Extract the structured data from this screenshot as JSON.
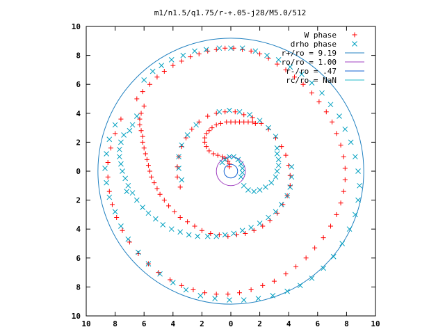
{
  "chart_data": {
    "type": "scatter",
    "title": "m1/n1.5/q1.75/r-+.05-j28/M5.0/512",
    "xlim": [
      -10,
      10
    ],
    "ylim": [
      -10,
      10
    ],
    "x_ticks": [
      -10,
      -8,
      -6,
      -4,
      -2,
      0,
      2,
      4,
      6,
      8,
      10
    ],
    "y_ticks": [
      -10,
      -8,
      -6,
      -4,
      -2,
      0,
      2,
      4,
      6,
      8,
      10
    ],
    "x_tick_labels": [
      "10",
      "8",
      "6",
      "4",
      "2",
      "0",
      "2",
      "4",
      "6",
      "8",
      "10"
    ],
    "y_tick_labels": [
      "10",
      "8",
      "6",
      "4",
      "2",
      "0",
      "2",
      "4",
      "6",
      "8",
      "10"
    ],
    "grid": false,
    "legend_position": "top-right",
    "series": [
      {
        "name": "W phase",
        "kind": "points",
        "marker": "plus",
        "color": "#ff0000",
        "points": [
          [
            -0.7,
            3.3
          ],
          [
            -1.0,
            3.2
          ],
          [
            -1.3,
            3.0
          ],
          [
            -1.5,
            2.8
          ],
          [
            -1.7,
            2.6
          ],
          [
            -1.8,
            2.3
          ],
          [
            -1.8,
            2.0
          ],
          [
            -1.7,
            1.7
          ],
          [
            -1.5,
            1.4
          ],
          [
            -1.2,
            1.2
          ],
          [
            -0.9,
            1.1
          ],
          [
            -0.6,
            1.0
          ],
          [
            -0.4,
            0.9
          ],
          [
            -0.2,
            0.7
          ],
          [
            -0.1,
            0.5
          ],
          [
            -0.1,
            0.3
          ],
          [
            -0.3,
            3.4
          ],
          [
            0.0,
            3.4
          ],
          [
            0.3,
            3.4
          ],
          [
            0.6,
            3.4
          ],
          [
            0.9,
            3.4
          ],
          [
            1.2,
            3.4
          ],
          [
            1.5,
            3.4
          ],
          [
            1.7,
            3.3
          ],
          [
            -6.0,
            4.5
          ],
          [
            -6.2,
            4.0
          ],
          [
            -6.3,
            3.6
          ],
          [
            -6.3,
            3.2
          ],
          [
            -6.2,
            2.8
          ],
          [
            -6.1,
            2.4
          ],
          [
            -6.1,
            2.0
          ],
          [
            -6.0,
            1.6
          ],
          [
            -5.9,
            1.2
          ],
          [
            -5.8,
            0.8
          ],
          [
            -5.7,
            0.4
          ],
          [
            -5.6,
            0.0
          ],
          [
            -5.5,
            -0.4
          ],
          [
            -5.3,
            -0.8
          ],
          [
            -5.1,
            -1.2
          ],
          [
            -4.9,
            -1.6
          ],
          [
            -4.6,
            -2.0
          ],
          [
            -4.3,
            -2.4
          ],
          [
            -3.9,
            -2.8
          ],
          [
            -3.5,
            -3.2
          ],
          [
            -3.0,
            -3.5
          ],
          [
            -2.5,
            -3.8
          ],
          [
            -2.0,
            -4.1
          ],
          [
            -1.4,
            -4.3
          ],
          [
            -0.8,
            -4.4
          ],
          [
            -0.2,
            -4.5
          ],
          [
            0.4,
            -4.4
          ],
          [
            1.0,
            -4.3
          ],
          [
            1.6,
            -4.1
          ],
          [
            2.2,
            -3.8
          ],
          [
            2.7,
            -3.4
          ],
          [
            3.2,
            -2.9
          ],
          [
            3.6,
            -2.3
          ],
          [
            3.9,
            -1.7
          ],
          [
            4.1,
            -1.0
          ],
          [
            4.1,
            -0.3
          ],
          [
            4.0,
            0.4
          ],
          [
            3.8,
            1.1
          ],
          [
            3.5,
            1.7
          ],
          [
            3.1,
            2.3
          ],
          [
            2.6,
            2.9
          ],
          [
            2.1,
            3.3
          ],
          [
            1.5,
            3.7
          ],
          [
            0.9,
            3.9
          ],
          [
            0.3,
            4.1
          ],
          [
            -0.4,
            4.1
          ],
          [
            -1.0,
            4.0
          ],
          [
            -1.6,
            3.8
          ],
          [
            -2.2,
            3.4
          ],
          [
            -2.7,
            2.9
          ],
          [
            -3.1,
            2.3
          ],
          [
            -3.4,
            1.7
          ],
          [
            -3.6,
            1.0
          ],
          [
            -3.7,
            0.3
          ],
          [
            -3.7,
            -0.4
          ],
          [
            -3.5,
            -1.1
          ],
          [
            -6.5,
            5.0
          ],
          [
            -6.1,
            5.5
          ],
          [
            -5.6,
            6.0
          ],
          [
            -5.1,
            6.5
          ],
          [
            -4.6,
            6.9
          ],
          [
            -4.0,
            7.3
          ],
          [
            -3.4,
            7.6
          ],
          [
            -2.8,
            7.9
          ],
          [
            -2.2,
            8.1
          ],
          [
            -1.6,
            8.3
          ],
          [
            -1.0,
            8.4
          ],
          [
            -0.4,
            8.5
          ],
          [
            0.2,
            8.5
          ],
          [
            0.8,
            8.4
          ],
          [
            1.4,
            8.3
          ],
          [
            2.0,
            8.1
          ],
          [
            2.6,
            7.8
          ],
          [
            3.2,
            7.4
          ],
          [
            3.8,
            7.0
          ],
          [
            4.4,
            6.5
          ],
          [
            5.0,
            6.0
          ],
          [
            5.6,
            5.4
          ],
          [
            6.1,
            4.8
          ],
          [
            6.6,
            4.1
          ],
          [
            7.0,
            3.4
          ],
          [
            7.3,
            2.6
          ],
          [
            7.6,
            1.8
          ],
          [
            7.8,
            1.0
          ],
          [
            7.9,
            0.2
          ],
          [
            7.9,
            -0.6
          ],
          [
            7.8,
            -1.4
          ],
          [
            7.6,
            -2.2
          ],
          [
            7.3,
            -3.0
          ],
          [
            6.9,
            -3.8
          ],
          [
            6.4,
            -4.6
          ],
          [
            5.8,
            -5.3
          ],
          [
            5.2,
            -6.0
          ],
          [
            4.5,
            -6.6
          ],
          [
            3.8,
            -7.1
          ],
          [
            3.0,
            -7.6
          ],
          [
            2.2,
            -7.9
          ],
          [
            1.4,
            -8.2
          ],
          [
            0.6,
            -8.4
          ],
          [
            -0.2,
            -8.5
          ],
          [
            -1.0,
            -8.5
          ],
          [
            -1.8,
            -8.4
          ],
          [
            -2.6,
            -8.2
          ],
          [
            -3.4,
            -7.9
          ],
          [
            -4.2,
            -7.5
          ],
          [
            -5.0,
            -7.0
          ],
          [
            -5.7,
            -6.4
          ],
          [
            -6.4,
            -5.7
          ],
          [
            -7.0,
            -4.9
          ],
          [
            -7.5,
            -4.1
          ],
          [
            -7.9,
            -3.2
          ],
          [
            -8.2,
            -2.3
          ],
          [
            -8.4,
            -1.4
          ],
          [
            -8.5,
            -0.4
          ],
          [
            -8.5,
            0.6
          ],
          [
            -8.3,
            1.6
          ],
          [
            -8.0,
            2.6
          ],
          [
            -7.6,
            3.6
          ]
        ]
      },
      {
        "name": "drho phase",
        "kind": "points",
        "marker": "cross",
        "color": "#00a0c0",
        "points": [
          [
            -0.6,
            0.6
          ],
          [
            -0.4,
            0.8
          ],
          [
            -0.1,
            1.0
          ],
          [
            0.2,
            1.0
          ],
          [
            0.5,
            0.8
          ],
          [
            0.7,
            0.5
          ],
          [
            0.8,
            0.2
          ],
          [
            0.8,
            -0.1
          ],
          [
            0.7,
            -0.4
          ],
          [
            0.9,
            -1.0
          ],
          [
            1.2,
            -1.3
          ],
          [
            1.6,
            -1.4
          ],
          [
            2.0,
            -1.3
          ],
          [
            2.4,
            -1.1
          ],
          [
            2.8,
            -0.8
          ],
          [
            3.1,
            -0.4
          ],
          [
            3.2,
            0.0
          ],
          [
            3.3,
            0.4
          ],
          [
            3.3,
            0.8
          ],
          [
            3.2,
            1.2
          ],
          [
            3.2,
            1.6
          ],
          [
            -7.4,
            2.5
          ],
          [
            -7.6,
            2.0
          ],
          [
            -7.7,
            1.5
          ],
          [
            -7.7,
            1.0
          ],
          [
            -7.6,
            0.5
          ],
          [
            -7.5,
            0.0
          ],
          [
            -7.3,
            -0.5
          ],
          [
            -7.1,
            -1.0
          ],
          [
            -6.8,
            -1.5
          ],
          [
            -6.5,
            -2.0
          ],
          [
            -6.1,
            -2.5
          ],
          [
            -5.7,
            -2.9
          ],
          [
            -5.2,
            -3.3
          ],
          [
            -4.7,
            -3.7
          ],
          [
            -4.1,
            -4.0
          ],
          [
            -3.5,
            -4.2
          ],
          [
            -2.9,
            -4.4
          ],
          [
            -2.3,
            -4.5
          ],
          [
            -1.6,
            -4.5
          ],
          [
            -1.0,
            -4.5
          ],
          [
            -0.4,
            -4.4
          ],
          [
            0.2,
            -4.3
          ],
          [
            0.8,
            -4.1
          ],
          [
            1.4,
            -3.9
          ],
          [
            2.0,
            -3.6
          ],
          [
            2.6,
            -3.2
          ],
          [
            3.1,
            -2.8
          ],
          [
            3.5,
            -2.3
          ],
          [
            3.9,
            -1.7
          ],
          [
            4.1,
            -1.1
          ],
          [
            4.2,
            -0.4
          ],
          [
            4.2,
            0.3
          ],
          [
            -6.8,
            3.2
          ],
          [
            -6.5,
            3.8
          ],
          [
            -7.0,
            2.8
          ],
          [
            -7.2,
            -1.4
          ],
          [
            -0.8,
            4.1
          ],
          [
            -0.1,
            4.2
          ],
          [
            0.6,
            4.1
          ],
          [
            1.3,
            3.9
          ],
          [
            2.0,
            3.5
          ],
          [
            2.6,
            3.0
          ],
          [
            3.1,
            2.4
          ],
          [
            -2.4,
            3.2
          ],
          [
            -3.0,
            2.5
          ],
          [
            -3.4,
            1.8
          ],
          [
            -3.6,
            1.0
          ],
          [
            -3.6,
            0.2
          ],
          [
            -3.4,
            -0.6
          ],
          [
            -6.0,
            6.3
          ],
          [
            -5.4,
            6.9
          ],
          [
            -4.8,
            7.3
          ],
          [
            -4.1,
            7.7
          ],
          [
            -3.3,
            8.0
          ],
          [
            -2.5,
            8.3
          ],
          [
            -1.7,
            8.4
          ],
          [
            -0.8,
            8.5
          ],
          [
            0.0,
            8.5
          ],
          [
            0.8,
            8.5
          ],
          [
            1.7,
            8.3
          ],
          [
            2.5,
            8.0
          ],
          [
            3.3,
            7.7
          ],
          [
            4.1,
            7.2
          ],
          [
            4.9,
            6.7
          ],
          [
            5.6,
            6.1
          ],
          [
            6.3,
            5.4
          ],
          [
            6.9,
            4.6
          ],
          [
            7.5,
            3.8
          ],
          [
            7.9,
            2.9
          ],
          [
            8.3,
            2.0
          ],
          [
            8.6,
            1.0
          ],
          [
            8.8,
            0.0
          ],
          [
            8.9,
            -1.0
          ],
          [
            8.8,
            -2.0
          ],
          [
            8.6,
            -3.0
          ],
          [
            8.2,
            -4.0
          ],
          [
            7.7,
            -5.0
          ],
          [
            7.1,
            -5.9
          ],
          [
            6.4,
            -6.7
          ],
          [
            5.6,
            -7.4
          ],
          [
            4.8,
            -7.9
          ],
          [
            3.9,
            -8.3
          ],
          [
            2.9,
            -8.6
          ],
          [
            1.9,
            -8.8
          ],
          [
            0.9,
            -8.9
          ],
          [
            -0.1,
            -8.9
          ],
          [
            -1.1,
            -8.8
          ],
          [
            -2.1,
            -8.6
          ],
          [
            -3.1,
            -8.2
          ],
          [
            -4.0,
            -7.7
          ],
          [
            -4.9,
            -7.1
          ],
          [
            -5.7,
            -6.4
          ],
          [
            -6.4,
            -5.6
          ],
          [
            -7.1,
            -4.7
          ],
          [
            -7.6,
            -3.8
          ],
          [
            -8.0,
            -2.8
          ],
          [
            -8.4,
            -1.8
          ],
          [
            -8.6,
            -0.8
          ],
          [
            -8.7,
            0.2
          ],
          [
            -8.6,
            1.2
          ],
          [
            -8.4,
            2.2
          ],
          [
            -8.0,
            3.2
          ]
        ]
      }
    ],
    "circles": [
      {
        "name": "r+/ro = 9.19",
        "color": "#2080c0",
        "radius": 9.19
      },
      {
        "name": "ro/ro = 1.00",
        "color": "#a040c0",
        "radius": 1.0
      },
      {
        "name": "r-/ro = .47",
        "color": "#1060d0",
        "radius": 0.47
      },
      {
        "name": "rc/ro = NaN",
        "color": "#20b8c8",
        "radius": null
      }
    ]
  }
}
